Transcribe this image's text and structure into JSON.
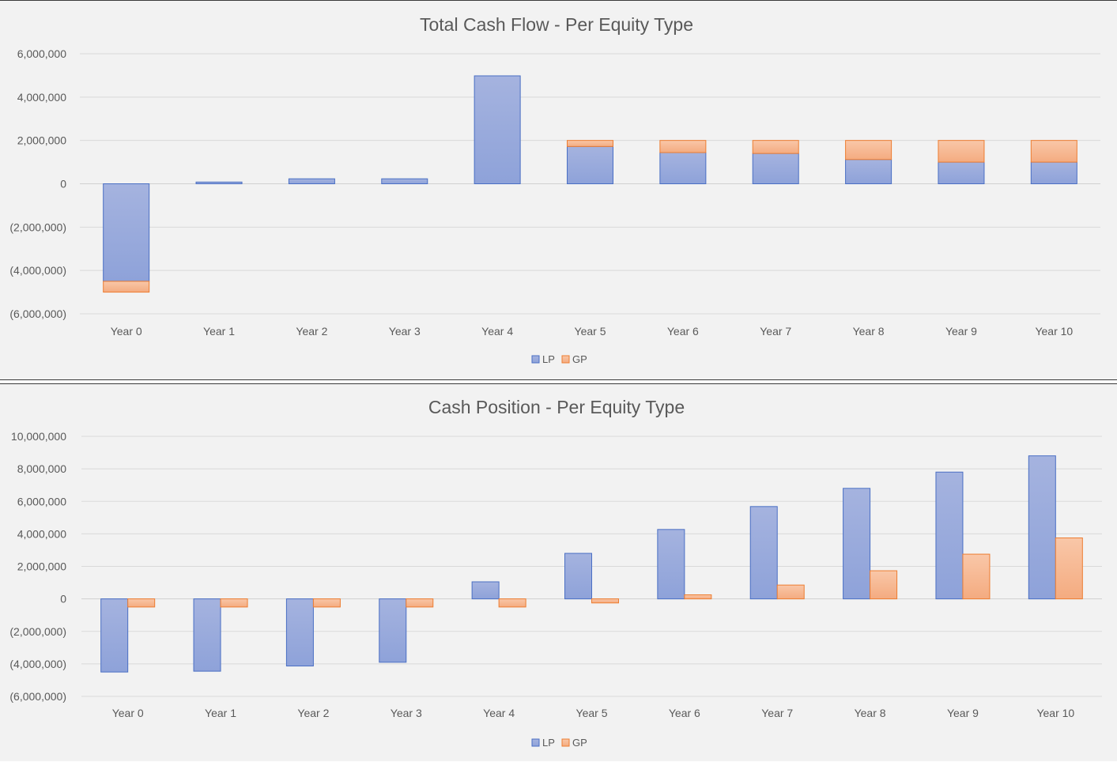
{
  "colors": {
    "lp_fill_top": "#a5b3df",
    "lp_fill_bottom": "#8ea2d9",
    "lp_stroke": "#4a6fc4",
    "gp_fill_top": "#f9c7a8",
    "gp_fill_bottom": "#f4ab80",
    "gp_stroke": "#ed7d31",
    "background": "#f2f2f2"
  },
  "chart_data": [
    {
      "id": "cash_flow",
      "type": "bar",
      "stacked": true,
      "title": "Total Cash Flow - Per Equity Type",
      "categories": [
        "Year 0",
        "Year 1",
        "Year 2",
        "Year 3",
        "Year 4",
        "Year 5",
        "Year 6",
        "Year 7",
        "Year 8",
        "Year 9",
        "Year 10"
      ],
      "series": [
        {
          "name": "LP",
          "color": "#8ea2d9",
          "values": [
            -4500000,
            80000,
            230000,
            230000,
            4980000,
            1720000,
            1440000,
            1400000,
            1120000,
            1000000,
            1000000
          ]
        },
        {
          "name": "GP",
          "color": "#f4ab80",
          "values": [
            -500000,
            0,
            0,
            0,
            0,
            280000,
            560000,
            600000,
            880000,
            1000000,
            1000000
          ]
        }
      ],
      "ylim": [
        -6000000,
        6000000
      ],
      "yticks": [
        6000000,
        4000000,
        2000000,
        0,
        -2000000,
        -4000000,
        -6000000
      ],
      "ytick_labels": [
        "6,000,000",
        "4,000,000",
        "2,000,000",
        "0",
        "(2,000,000)",
        "(4,000,000)",
        "(6,000,000)"
      ],
      "grid": true,
      "legend_position": "bottom",
      "legend": [
        "LP",
        "GP"
      ]
    },
    {
      "id": "cash_position",
      "type": "bar",
      "stacked": false,
      "title": "Cash Position - Per Equity Type",
      "categories": [
        "Year 0",
        "Year 1",
        "Year 2",
        "Year 3",
        "Year 4",
        "Year 5",
        "Year 6",
        "Year 7",
        "Year 8",
        "Year 9",
        "Year 10"
      ],
      "series": [
        {
          "name": "LP",
          "color": "#8ea2d9",
          "values": [
            -4500000,
            -4450000,
            -4130000,
            -3900000,
            1050000,
            2800000,
            4270000,
            5680000,
            6800000,
            7800000,
            8800000
          ]
        },
        {
          "name": "GP",
          "color": "#f4ab80",
          "values": [
            -500000,
            -500000,
            -500000,
            -500000,
            -500000,
            -250000,
            250000,
            850000,
            1730000,
            2750000,
            3750000
          ]
        }
      ],
      "ylim": [
        -6000000,
        10000000
      ],
      "yticks": [
        10000000,
        8000000,
        6000000,
        4000000,
        2000000,
        0,
        -2000000,
        -4000000,
        -6000000
      ],
      "ytick_labels": [
        "10,000,000",
        "8,000,000",
        "6,000,000",
        "4,000,000",
        "2,000,000",
        "0",
        "(2,000,000)",
        "(4,000,000)",
        "(6,000,000)"
      ],
      "grid": true,
      "legend_position": "bottom",
      "legend": [
        "LP",
        "GP"
      ]
    }
  ]
}
